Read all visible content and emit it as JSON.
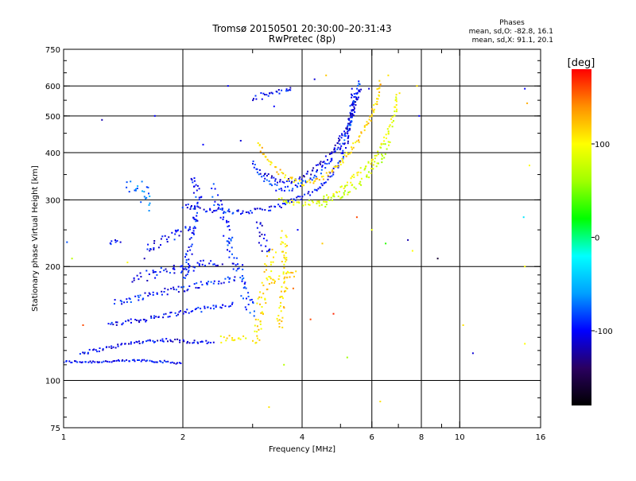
{
  "chart_data": {
    "type": "scatter",
    "title": "Tromsø 20150501 20:30:00–20:31:43",
    "subtitle": "RwPretec (8p)",
    "xlabel": "Frequency [MHz]",
    "ylabel": "Stationary phase Virtual Height [km]",
    "xscale": "log",
    "yscale": "log",
    "xlim": [
      1,
      16
    ],
    "ylim": [
      75,
      750
    ],
    "x_ticks": [
      1,
      2,
      4,
      6,
      8,
      10,
      16
    ],
    "x_tick_labels": [
      "1",
      "2",
      "4",
      "6",
      "8",
      "10",
      "16"
    ],
    "x_minor_ticks": [
      3,
      5,
      7,
      9
    ],
    "y_ticks": [
      75,
      100,
      200,
      300,
      400,
      500,
      600,
      750
    ],
    "y_tick_labels": [
      "75",
      "100",
      "200",
      "300",
      "400",
      "500",
      "600",
      "750"
    ],
    "grid": true,
    "legend": {
      "title": "Phases",
      "lines": [
        "mean, sd,O:  -82.8, 16.1",
        "mean, sd,X:  91.1, 20.1"
      ],
      "placement": "top-right"
    },
    "colorbar": {
      "label": "[deg]",
      "range": [
        -180,
        180
      ],
      "ticks": [
        100,
        0,
        -100
      ],
      "tick_labels": [
        "100",
        "0",
        "-100"
      ],
      "colormap": [
        "#000000",
        "#2a0060",
        "#0000ff",
        "#00a0ff",
        "#00ffff",
        "#00ff00",
        "#a0ff00",
        "#ffff00",
        "#ff9000",
        "#ff0000"
      ]
    },
    "traces": [
      {
        "points": [
          [
            1.0,
            112
          ],
          [
            1.2,
            112
          ],
          [
            1.4,
            112.5
          ],
          [
            1.6,
            113
          ],
          [
            1.8,
            112
          ],
          [
            2.0,
            111
          ]
        ],
        "phase": -100,
        "spread": 0.01
      },
      {
        "points": [
          [
            1.1,
            118
          ],
          [
            1.3,
            122
          ],
          [
            1.5,
            126
          ],
          [
            1.8,
            128
          ],
          [
            2.0,
            127
          ],
          [
            2.4,
            126
          ]
        ],
        "phase": -105,
        "spread": 0.015
      },
      {
        "points": [
          [
            1.3,
            140
          ],
          [
            1.6,
            145
          ],
          [
            1.9,
            150
          ],
          [
            2.3,
            155
          ],
          [
            2.7,
            160
          ]
        ],
        "phase": -100,
        "spread": 0.02
      },
      {
        "points": [
          [
            1.35,
            160
          ],
          [
            1.7,
            170
          ],
          [
            2.0,
            175
          ],
          [
            2.4,
            182
          ],
          [
            2.8,
            186
          ]
        ],
        "phase": -95,
        "spread": 0.03
      },
      {
        "points": [
          [
            1.5,
            185
          ],
          [
            1.8,
            195
          ],
          [
            2.1,
            200
          ],
          [
            2.5,
            205
          ]
        ],
        "phase": -100,
        "spread": 0.04
      },
      {
        "points": [
          [
            1.6,
            220
          ],
          [
            1.8,
            235
          ],
          [
            2.0,
            248
          ],
          [
            2.2,
            260
          ]
        ],
        "phase": -100,
        "spread": 0.05
      },
      {
        "points": [
          [
            1.45,
            320
          ],
          [
            1.55,
            330
          ],
          [
            1.65,
            310
          ],
          [
            1.6,
            290
          ]
        ],
        "phase": -70,
        "spread": 0.06
      },
      {
        "points": [
          [
            1.3,
            232
          ],
          [
            1.4,
            232
          ]
        ],
        "phase": -100,
        "spread": 0.02
      },
      {
        "points": [
          [
            2.0,
            290
          ],
          [
            2.3,
            283
          ],
          [
            2.8,
            278
          ],
          [
            3.2,
            282
          ],
          [
            3.6,
            292
          ],
          [
            4.0,
            305
          ],
          [
            4.4,
            320
          ],
          [
            4.7,
            345
          ],
          [
            5.0,
            380
          ],
          [
            5.2,
            430
          ],
          [
            5.3,
            500
          ],
          [
            5.4,
            590
          ]
        ],
        "phase": -100,
        "spread": 0.02
      },
      {
        "points": [
          [
            2.4,
            320
          ],
          [
            2.5,
            280
          ],
          [
            2.6,
            240
          ],
          [
            2.7,
            210
          ],
          [
            2.8,
            190
          ],
          [
            2.9,
            165
          ],
          [
            3.0,
            148
          ]
        ],
        "phase": -90,
        "spread": 0.05
      },
      {
        "points": [
          [
            2.1,
            350
          ],
          [
            2.2,
            300
          ],
          [
            2.15,
            270
          ],
          [
            2.1,
            240
          ],
          [
            2.05,
            200
          ],
          [
            2.0,
            180
          ]
        ],
        "phase": -95,
        "spread": 0.04
      },
      {
        "points": [
          [
            3.0,
            380
          ],
          [
            3.2,
            340
          ],
          [
            3.5,
            320
          ],
          [
            3.8,
            322
          ],
          [
            4.2,
            340
          ],
          [
            4.6,
            370
          ],
          [
            5.0,
            420
          ],
          [
            5.3,
            480
          ],
          [
            5.5,
            560
          ],
          [
            5.6,
            620
          ]
        ],
        "phase": -90,
        "spread": 0.02
      },
      {
        "points": [
          [
            3.2,
            355
          ],
          [
            3.5,
            335
          ],
          [
            3.9,
            338
          ],
          [
            4.3,
            360
          ],
          [
            4.7,
            395
          ],
          [
            5.1,
            450
          ],
          [
            5.4,
            520
          ],
          [
            5.6,
            600
          ]
        ],
        "phase": -110,
        "spread": 0.02
      },
      {
        "points": [
          [
            3.1,
            420
          ],
          [
            3.3,
            380
          ],
          [
            3.6,
            345
          ],
          [
            4.0,
            330
          ],
          [
            4.4,
            338
          ],
          [
            4.8,
            360
          ],
          [
            5.2,
            395
          ],
          [
            5.6,
            440
          ],
          [
            6.0,
            500
          ],
          [
            6.2,
            560
          ],
          [
            6.3,
            620
          ]
        ],
        "phase": 115,
        "spread": 0.02
      },
      {
        "points": [
          [
            3.5,
            300
          ],
          [
            4.0,
            292
          ],
          [
            4.5,
            300
          ],
          [
            5.0,
            320
          ],
          [
            5.5,
            350
          ],
          [
            6.0,
            380
          ],
          [
            6.4,
            420
          ],
          [
            6.7,
            470
          ],
          [
            6.9,
            520
          ],
          [
            7.0,
            580
          ]
        ],
        "phase": 90,
        "spread": 0.02
      },
      {
        "points": [
          [
            4.4,
            290
          ],
          [
            4.8,
            300
          ],
          [
            5.3,
            320
          ],
          [
            5.8,
            345
          ],
          [
            6.3,
            380
          ],
          [
            6.6,
            430
          ]
        ],
        "phase": 75,
        "spread": 0.03
      },
      {
        "points": [
          [
            3.05,
            125
          ],
          [
            3.1,
            140
          ],
          [
            3.15,
            160
          ],
          [
            3.25,
            180
          ],
          [
            3.3,
            205
          ],
          [
            3.4,
            220
          ]
        ],
        "phase": 110,
        "spread": 0.05
      },
      {
        "points": [
          [
            3.3,
            180
          ],
          [
            3.5,
            185
          ],
          [
            3.7,
            190
          ],
          [
            3.9,
            192
          ]
        ],
        "phase": 115,
        "spread": 0.03
      },
      {
        "points": [
          [
            3.5,
            140
          ],
          [
            3.55,
            160
          ],
          [
            3.6,
            175
          ],
          [
            3.65,
            190
          ],
          [
            3.6,
            215
          ],
          [
            3.6,
            250
          ]
        ],
        "phase": 110,
        "spread": 0.04
      },
      {
        "points": [
          [
            2.5,
            128
          ],
          [
            2.7,
            130
          ],
          [
            2.9,
            132
          ]
        ],
        "phase": 105,
        "spread": 0.03
      },
      {
        "points": [
          [
            3.1,
            260
          ],
          [
            3.2,
            230
          ],
          [
            3.3,
            215
          ]
        ],
        "phase": -110,
        "spread": 0.04
      },
      {
        "points": [
          [
            3.0,
            560
          ],
          [
            3.3,
            570
          ],
          [
            3.6,
            580
          ],
          [
            3.8,
            600
          ]
        ],
        "phase": -100,
        "spread": 0.03
      }
    ],
    "isolated_points": [
      [
        1.25,
        488,
        -120
      ],
      [
        1.02,
        232,
        -80
      ],
      [
        1.05,
        210,
        70
      ],
      [
        1.12,
        140,
        160
      ],
      [
        1.7,
        500,
        -100
      ],
      [
        3.3,
        85,
        110
      ],
      [
        3.6,
        110,
        70
      ],
      [
        4.2,
        145,
        160
      ],
      [
        4.5,
        230,
        120
      ],
      [
        4.8,
        150,
        170
      ],
      [
        5.2,
        115,
        60
      ],
      [
        5.5,
        270,
        160
      ],
      [
        6.3,
        88,
        110
      ],
      [
        6.5,
        230,
        30
      ],
      [
        7.4,
        235,
        -120
      ],
      [
        7.6,
        220,
        100
      ],
      [
        8.8,
        210,
        -160
      ],
      [
        10.8,
        118,
        -110
      ],
      [
        10.2,
        140,
        110
      ],
      [
        14.5,
        270,
        -30
      ],
      [
        14.6,
        200,
        100
      ],
      [
        14.6,
        125,
        100
      ],
      [
        14.6,
        590,
        -100
      ],
      [
        14.8,
        540,
        130
      ],
      [
        15.0,
        370,
        100
      ],
      [
        7.9,
        500,
        -100
      ],
      [
        4.3,
        625,
        -110
      ],
      [
        4.6,
        640,
        120
      ],
      [
        2.8,
        430,
        -110
      ],
      [
        2.6,
        600,
        -100
      ],
      [
        3.4,
        530,
        -100
      ],
      [
        5.9,
        590,
        -110
      ],
      [
        6.6,
        640,
        110
      ],
      [
        7.8,
        600,
        110
      ],
      [
        1.6,
        210,
        -120
      ],
      [
        1.45,
        205,
        100
      ],
      [
        2.25,
        420,
        -100
      ],
      [
        3.8,
        175,
        150
      ],
      [
        3.9,
        250,
        -100
      ],
      [
        6.0,
        250,
        90
      ]
    ]
  }
}
